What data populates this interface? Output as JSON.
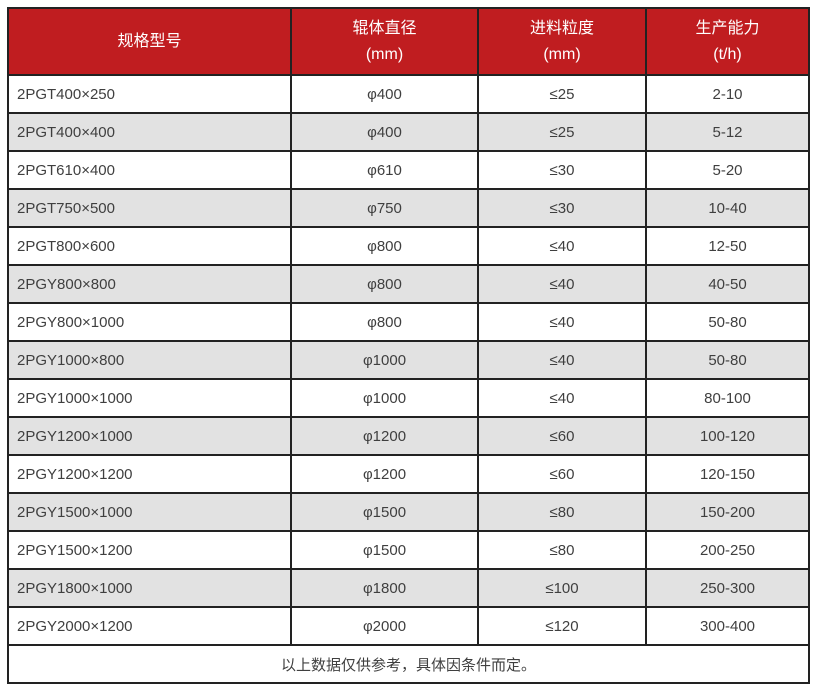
{
  "colors": {
    "header_bg": "#c01d20",
    "header_text": "#ffffff",
    "row_bg": "#ffffff",
    "row_alt_bg": "#e2e2e2",
    "border": "#222222",
    "body_text": "#3f3f3f"
  },
  "table": {
    "headers": [
      {
        "line1": "规格型号",
        "line2": ""
      },
      {
        "line1": "辊体直径",
        "line2": "(mm)"
      },
      {
        "line1": "进料粒度",
        "line2": "(mm)"
      },
      {
        "line1": "生产能力",
        "line2": "(t/h)"
      }
    ],
    "rows": [
      [
        "2PGT400×250",
        "φ400",
        "≤25",
        "2-10"
      ],
      [
        "2PGT400×400",
        "φ400",
        "≤25",
        "5-12"
      ],
      [
        "2PGT610×400",
        "φ610",
        "≤30",
        "5-20"
      ],
      [
        "2PGT750×500",
        "φ750",
        "≤30",
        "10-40"
      ],
      [
        "2PGT800×600",
        "φ800",
        "≤40",
        "12-50"
      ],
      [
        "2PGY800×800",
        "φ800",
        "≤40",
        "40-50"
      ],
      [
        "2PGY800×1000",
        "φ800",
        "≤40",
        "50-80"
      ],
      [
        "2PGY1000×800",
        "φ1000",
        "≤40",
        "50-80"
      ],
      [
        "2PGY1000×1000",
        "φ1000",
        "≤40",
        "80-100"
      ],
      [
        "2PGY1200×1000",
        "φ1200",
        "≤60",
        "100-120"
      ],
      [
        "2PGY1200×1200",
        "φ1200",
        "≤60",
        "120-150"
      ],
      [
        "2PGY1500×1000",
        "φ1500",
        "≤80",
        "150-200"
      ],
      [
        "2PGY1500×1200",
        "φ1500",
        "≤80",
        "200-250"
      ],
      [
        "2PGY1800×1000",
        "φ1800",
        "≤100",
        "250-300"
      ],
      [
        "2PGY2000×1200",
        "φ2000",
        "≤120",
        "300-400"
      ]
    ],
    "footer_note": "以上数据仅供参考，具体因条件而定。"
  }
}
